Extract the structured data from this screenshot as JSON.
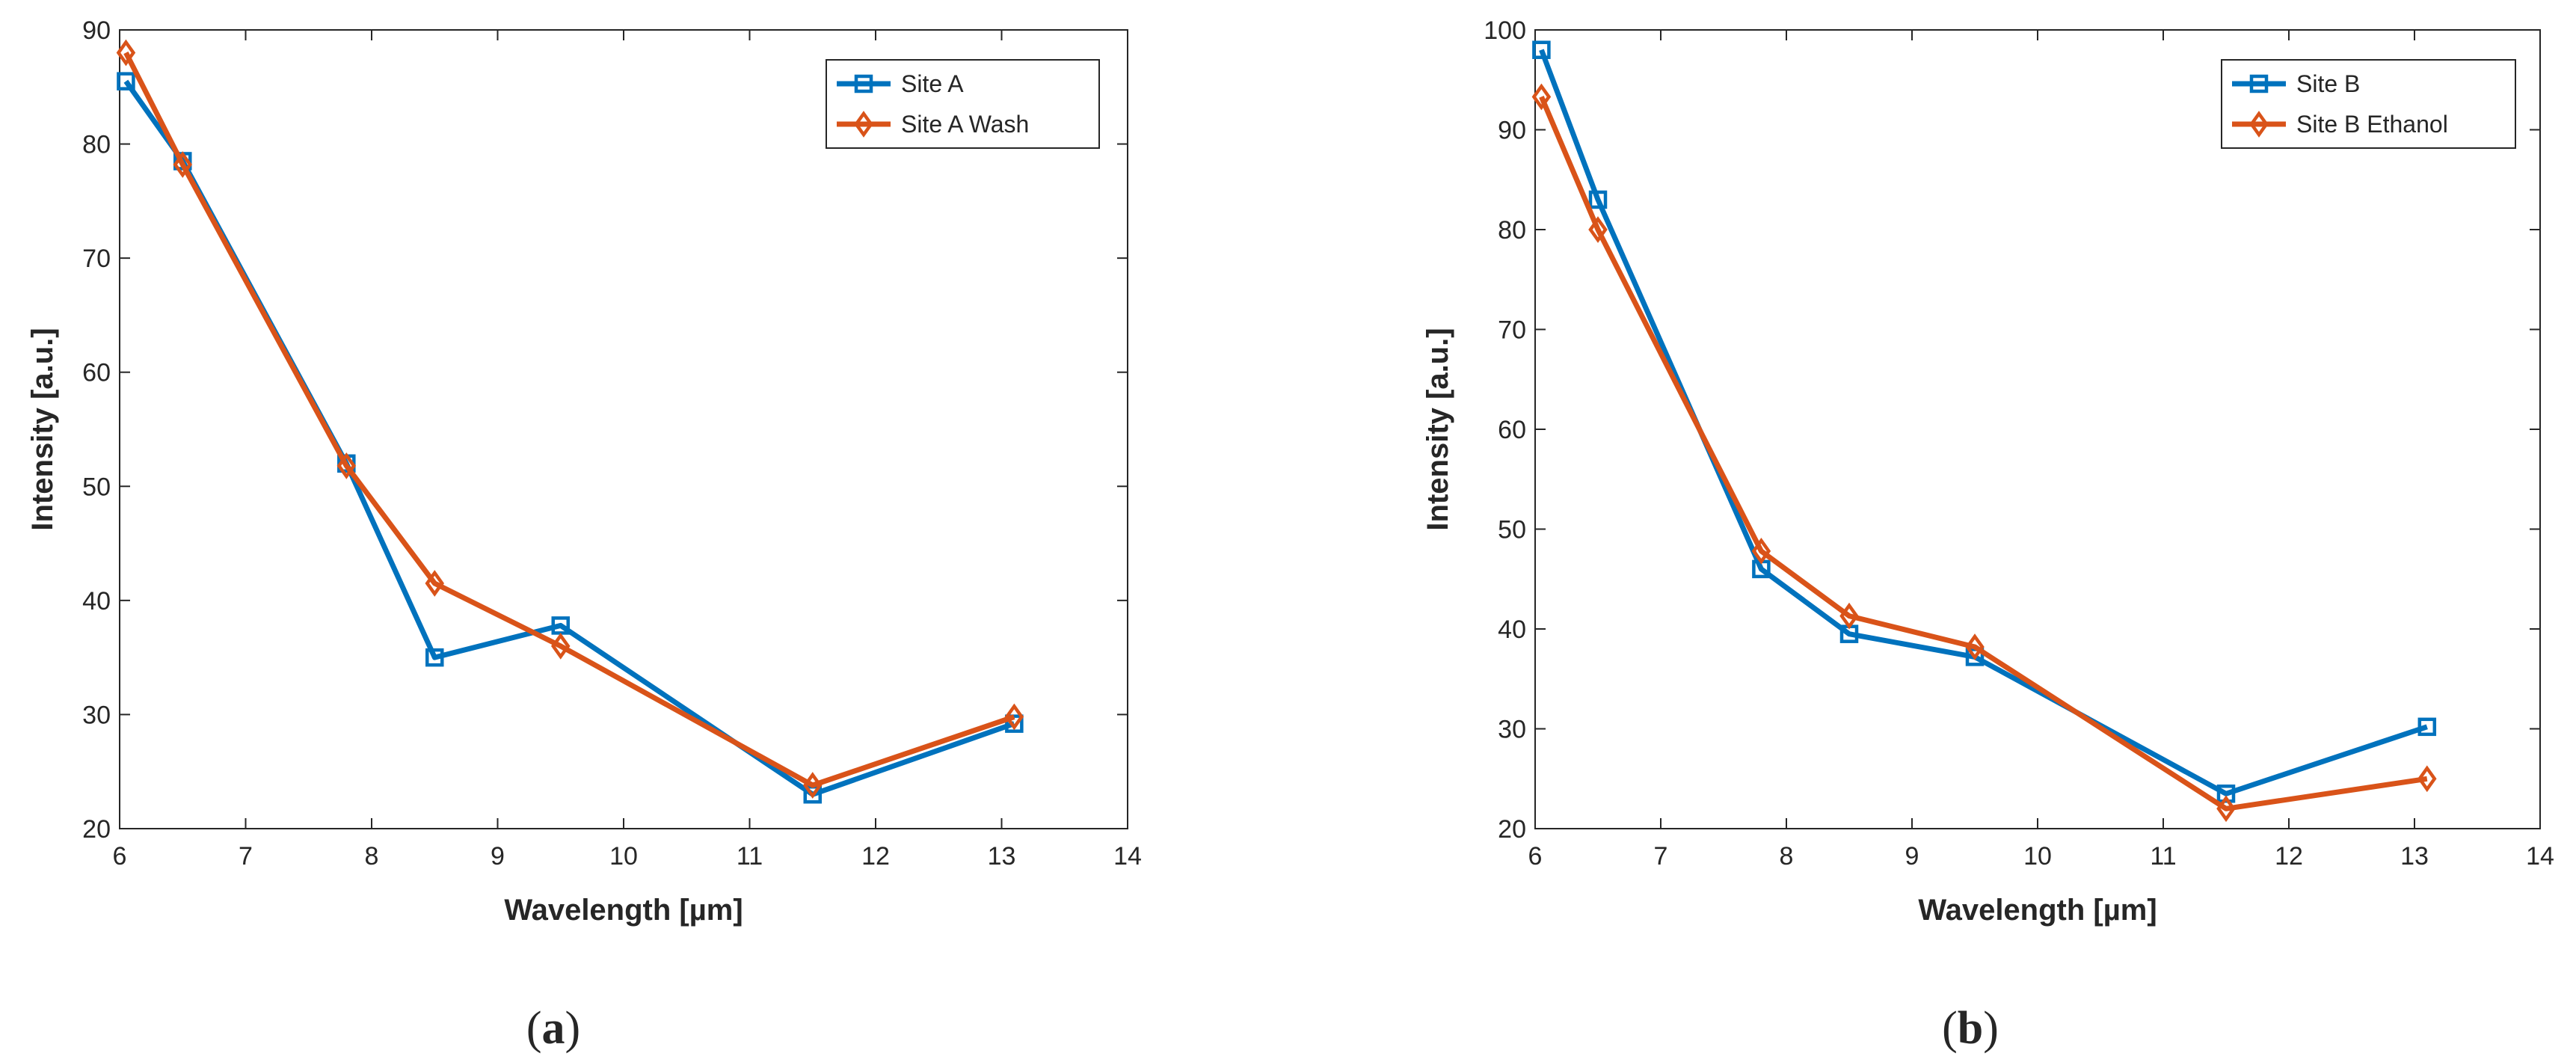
{
  "figure": {
    "panels": [
      {
        "label_open": "(",
        "label_letter": "a",
        "label_close": ")"
      },
      {
        "label_open": "(",
        "label_letter": "b",
        "label_close": ")"
      }
    ]
  },
  "chart_data": [
    {
      "type": "line",
      "xlabel": "Wavelength  [µm]",
      "ylabel": "Intensity [a.u.]",
      "xlim": [
        6,
        14
      ],
      "ylim": [
        20,
        90
      ],
      "xticks": [
        6,
        7,
        8,
        9,
        10,
        11,
        12,
        13,
        14
      ],
      "yticks": [
        20,
        30,
        40,
        50,
        60,
        70,
        80,
        90
      ],
      "legend_position": "top-right",
      "x": [
        6.05,
        6.5,
        7.8,
        8.5,
        9.5,
        11.5,
        13.1
      ],
      "series": [
        {
          "name": "Site A",
          "color": "#0072BD",
          "marker": "square",
          "values": [
            85.5,
            78.5,
            52.0,
            35.0,
            37.8,
            23.0,
            29.2
          ]
        },
        {
          "name": "Site A Wash",
          "color": "#D95319",
          "marker": "diamond",
          "values": [
            88.0,
            78.2,
            51.8,
            41.5,
            36.0,
            23.8,
            29.8
          ]
        }
      ]
    },
    {
      "type": "line",
      "xlabel": "Wavelength  [µm]",
      "ylabel": "Intensity [a.u.]",
      "xlim": [
        6,
        14
      ],
      "ylim": [
        20,
        100
      ],
      "xticks": [
        6,
        7,
        8,
        9,
        10,
        11,
        12,
        13,
        14
      ],
      "yticks": [
        20,
        30,
        40,
        50,
        60,
        70,
        80,
        90,
        100
      ],
      "legend_position": "top-right",
      "x": [
        6.05,
        6.5,
        7.8,
        8.5,
        9.5,
        11.5,
        13.1
      ],
      "series": [
        {
          "name": "Site B",
          "color": "#0072BD",
          "marker": "square",
          "values": [
            98.0,
            83.0,
            46.0,
            39.5,
            37.2,
            23.5,
            30.2
          ]
        },
        {
          "name": "Site B Ethanol",
          "color": "#D95319",
          "marker": "diamond",
          "values": [
            93.3,
            80.0,
            47.8,
            41.3,
            38.2,
            22.0,
            25.0
          ]
        }
      ]
    }
  ]
}
